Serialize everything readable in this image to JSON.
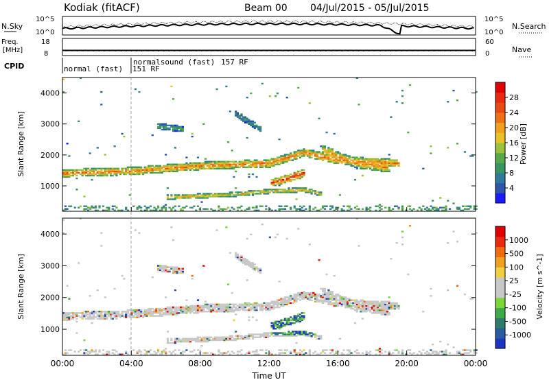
{
  "header": {
    "station": "Kodiak (fitACF)",
    "beam": "Beam 00",
    "dates": "04/Jul/2015 - 05/Jul/2015"
  },
  "sky_panel": {
    "left_label": "N.Sky",
    "right_label": "N.Search",
    "left_ticks": [
      "10^5",
      "10^0"
    ],
    "right_ticks": [
      "10^5",
      "10^0"
    ]
  },
  "freq_panel": {
    "left_label_1": "Freq.",
    "left_label_2": "[MHz]",
    "right_label": "Nave",
    "left_ticks": [
      "18",
      "8"
    ],
    "right_ticks": [
      "60",
      "0"
    ]
  },
  "cpid": {
    "label": "CPID",
    "modes": [
      {
        "name": "normal (fast)",
        "start_h": 0,
        "end_h": 4
      },
      {
        "name": "normalsound (fast)",
        "start_h": 4,
        "end_h": 24
      }
    ],
    "rf_labels": [
      "151 RF",
      "157 RF"
    ]
  },
  "x_axis": {
    "label": "Time UT",
    "ticks": [
      "00:00",
      "04:00",
      "08:00",
      "12:00",
      "16:00",
      "20:00",
      "00:00"
    ],
    "range_h": [
      0,
      24
    ]
  },
  "chart_data": [
    {
      "type": "heatmap",
      "name": "power",
      "ylabel": "Slant Range [km]",
      "yticks": [
        "1000",
        "2000",
        "3000",
        "4000"
      ],
      "ylim": [
        180,
        4500
      ],
      "xlim_hours": [
        0,
        24
      ],
      "colorbar": {
        "label": "Power [dB]",
        "ticks": [
          "4",
          "8",
          "12",
          "16",
          "20",
          "24",
          "28"
        ],
        "range": [
          0,
          30
        ],
        "colors": [
          "#1a1aff",
          "#2f55a8",
          "#2f7a9a",
          "#3a9460",
          "#58a84a",
          "#9bc23a",
          "#e8c22a",
          "#f0a020",
          "#f07018",
          "#e84a14",
          "#e82a10",
          "#e00000"
        ]
      },
      "bands": [
        {
          "t": [
            0,
            4,
            8,
            12,
            14,
            16,
            19.5
          ],
          "range": [
            1380,
            1450,
            1620,
            1700,
            2050,
            1800,
            1700
          ],
          "width": 260,
          "level": 22
        },
        {
          "t": [
            6,
            10,
            12,
            14,
            15
          ],
          "range": [
            600,
            700,
            800,
            850,
            700
          ],
          "width": 150,
          "level": 18
        },
        {
          "t": [
            12,
            13,
            14
          ],
          "range": [
            1050,
            1200,
            1400
          ],
          "width": 250,
          "level": 26
        },
        {
          "t": [
            15,
            17,
            19
          ],
          "range": [
            2150,
            1700,
            1550
          ],
          "width": 300,
          "level": 20
        },
        {
          "t": [
            5.5,
            7
          ],
          "range": [
            2900,
            2800
          ],
          "width": 200,
          "level": 10
        },
        {
          "t": [
            10,
            11.5
          ],
          "range": [
            3300,
            2800
          ],
          "width": 200,
          "level": 8
        }
      ]
    },
    {
      "type": "heatmap",
      "name": "velocity",
      "ylabel": "Slant Range [km]",
      "yticks": [
        "1000",
        "2000",
        "3000",
        "4000"
      ],
      "ylim": [
        180,
        4500
      ],
      "xlim_hours": [
        0,
        24
      ],
      "colorbar": {
        "label": "Velocity [m s^-1]",
        "ticks": [
          "1000",
          "500",
          "100",
          "25",
          "-25",
          "-100",
          "-500",
          "-1000"
        ],
        "colors": [
          "#1b35c0",
          "#2c5aa0",
          "#2f7a6a",
          "#3ea84a",
          "#7cd63a",
          "#c8c8c8",
          "#c8c8c8",
          "#f0d040",
          "#f0a020",
          "#f06a10",
          "#e82a10",
          "#e00000"
        ]
      }
    }
  ]
}
